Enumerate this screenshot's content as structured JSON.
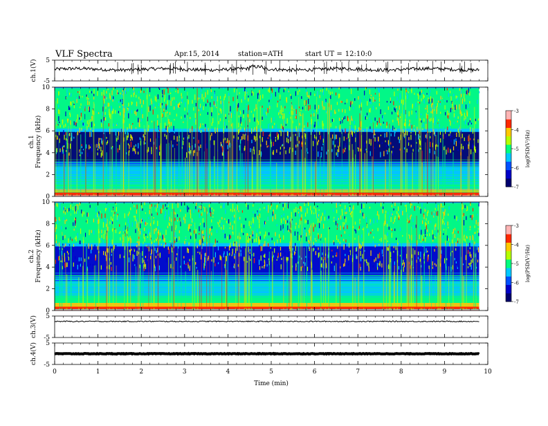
{
  "header": {
    "title": "VLF Spectra",
    "date": "Apr.15, 2014",
    "station": "station=ATH",
    "start_label": "start UT =",
    "start_time": "12:10:0"
  },
  "chart_data": [
    {
      "type": "line",
      "panel": "ch1-waveform",
      "ylabel": "ch.1(V)",
      "ylim": [
        -5,
        5
      ],
      "yticks": [
        "5",
        "-5"
      ],
      "xlim": [
        0,
        10
      ],
      "x_extent": [
        0,
        9.8
      ],
      "baseline_value": 0.6,
      "color": "#000000"
    },
    {
      "type": "heatmap",
      "panel": "ch1-spectrogram",
      "ylabel": "ch.1",
      "ylabel2": "Frequency (kHz)",
      "ylim": [
        0,
        10
      ],
      "yticks": [
        "0",
        "2",
        "4",
        "6",
        "8",
        "10"
      ],
      "xlim": [
        0,
        10
      ],
      "x_extent": [
        0,
        9.8
      ],
      "colorbar": {
        "label": "log(PSD(V²/Hz)",
        "range": [
          -7,
          -3
        ],
        "ticks": [
          "-3",
          "-4",
          "-5",
          "-6",
          "-7"
        ]
      },
      "colormap": [
        "#00006e",
        "#0000c8",
        "#0050ff",
        "#00c8ff",
        "#00ff7d",
        "#b4ff00",
        "#ffc800",
        "#ff2800",
        "#ffb4b4"
      ]
    },
    {
      "type": "heatmap",
      "panel": "ch2-spectrogram",
      "ylabel": "ch.2",
      "ylabel2": "Frequency (kHz)",
      "ylim": [
        0,
        10
      ],
      "yticks": [
        "0",
        "2",
        "4",
        "6",
        "8",
        "10"
      ],
      "xlim": [
        0,
        10
      ],
      "x_extent": [
        0,
        9.8
      ],
      "colorbar": {
        "label": "log(PSD(V²/Hz)",
        "range": [
          -7,
          -3
        ],
        "ticks": [
          "-3",
          "-4",
          "-5",
          "-6",
          "-7"
        ]
      },
      "colormap": [
        "#00006e",
        "#0000c8",
        "#0050ff",
        "#00c8ff",
        "#00ff7d",
        "#b4ff00",
        "#ffc800",
        "#ff2800",
        "#ffb4b4"
      ]
    },
    {
      "type": "line",
      "panel": "ch3-waveform",
      "ylabel": "ch.3(V)",
      "ylim": [
        -5,
        5
      ],
      "yticks": [
        "5",
        "-5"
      ],
      "xlim": [
        0,
        10
      ],
      "x_extent": [
        0,
        9.8
      ],
      "baseline_value": 2.5,
      "color": "#000000"
    },
    {
      "type": "line",
      "panel": "ch4-waveform",
      "ylabel": "ch.4(V)",
      "ylim": [
        -5,
        5
      ],
      "yticks": [
        "5",
        "-5"
      ],
      "xlim": [
        0,
        10
      ],
      "x_extent": [
        0,
        9.8
      ],
      "baseline_value": 0.0,
      "color": "#000000"
    }
  ],
  "x_axis": {
    "label": "Time (min)",
    "ticks": [
      "0",
      "1",
      "2",
      "3",
      "4",
      "5",
      "6",
      "7",
      "8",
      "9",
      "10"
    ]
  }
}
